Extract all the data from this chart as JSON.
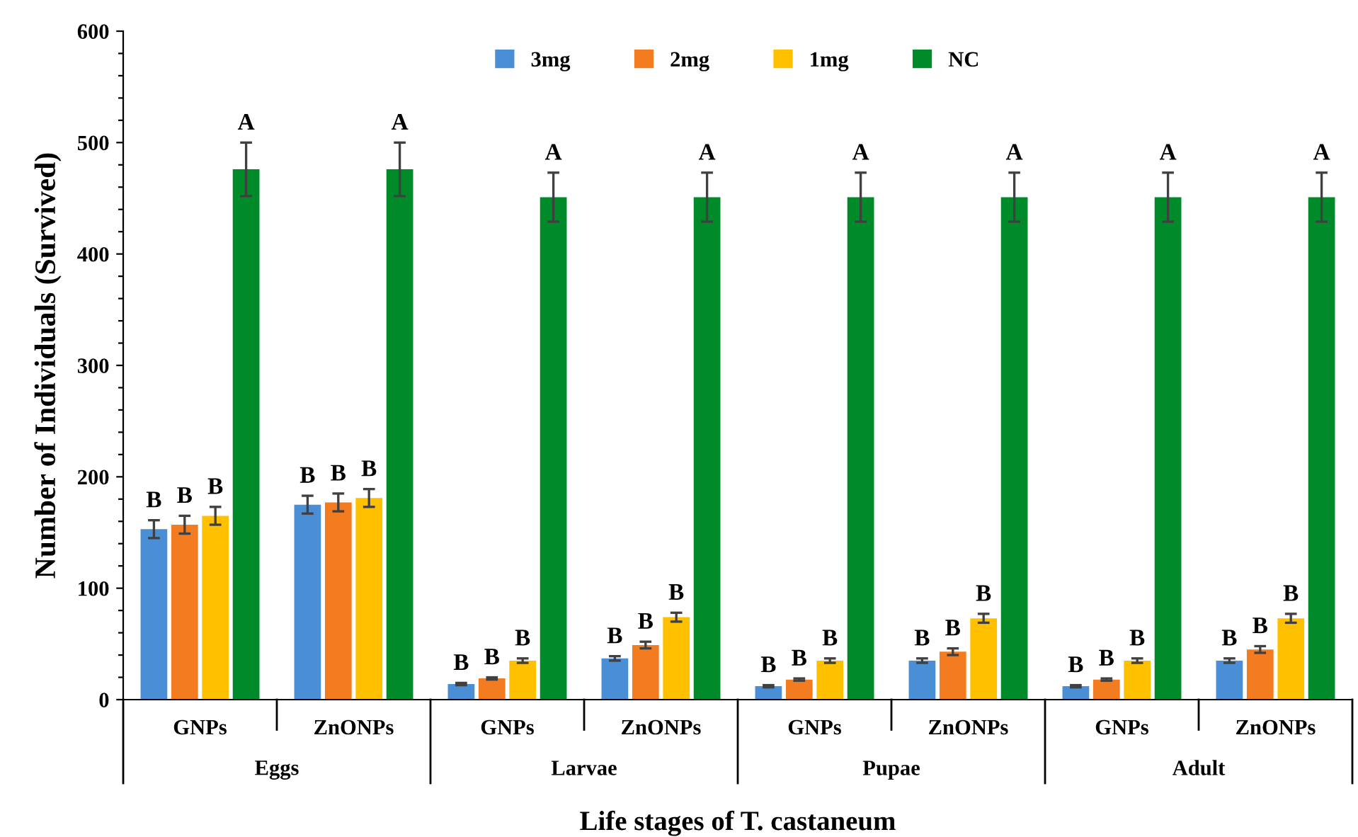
{
  "chart_data": {
    "type": "bar",
    "ylabel": "Number of Individuals (Survived)",
    "xlabel": "Life stages of T. castaneum",
    "categories": [
      "GNPs",
      "ZnONPs",
      "GNPs",
      "ZnONPs",
      "GNPs",
      "ZnONPs",
      "GNPs",
      "ZnONPs"
    ],
    "series": [
      {
        "name": "3mg",
        "color": "#4a8fd6",
        "values": [
          153,
          175,
          14,
          37,
          12,
          35,
          12,
          35
        ],
        "errors": [
          8,
          8,
          1,
          2,
          1,
          2,
          1,
          2
        ],
        "value_labels": [
          "B",
          "B",
          "B",
          "B",
          "B",
          "B",
          "B",
          "B"
        ]
      },
      {
        "name": "2mg",
        "color": "#f47c20",
        "values": [
          157,
          177,
          19,
          49,
          18,
          43,
          18,
          45
        ],
        "errors": [
          8,
          8,
          1,
          3,
          1,
          3,
          1,
          3
        ],
        "value_labels": [
          "B",
          "B",
          "B",
          "B",
          "B",
          "B",
          "B",
          "B"
        ]
      },
      {
        "name": "1mg",
        "color": "#ffc000",
        "values": [
          165,
          181,
          35,
          74,
          35,
          73,
          35,
          73
        ],
        "errors": [
          8,
          8,
          2,
          4,
          2,
          4,
          2,
          4
        ],
        "value_labels": [
          "B",
          "B",
          "B",
          "B",
          "B",
          "B",
          "B",
          "B"
        ]
      },
      {
        "name": "NC",
        "color": "#008a2a",
        "values": [
          476,
          476,
          451,
          451,
          451,
          451,
          451,
          451
        ],
        "errors": [
          24,
          24,
          22,
          22,
          22,
          22,
          22,
          22
        ],
        "value_labels": [
          "A",
          "A",
          "A",
          "A",
          "A",
          "A",
          "A",
          "A"
        ]
      }
    ],
    "annotations": [
      "Eggs",
      "Larvae",
      "Pupae",
      "Adult"
    ],
    "ylim": [
      0,
      600
    ],
    "yticks": [
      0,
      {
        "value": 20,
        "label": null
      },
      {
        "value": 40,
        "label": null
      },
      {
        "value": 60,
        "label": null
      },
      {
        "value": 80,
        "label": null
      },
      100,
      {
        "value": 120,
        "label": null
      },
      {
        "value": 140,
        "label": null
      },
      {
        "value": 160,
        "label": null
      },
      {
        "value": 180,
        "label": null
      },
      200,
      {
        "value": 220,
        "label": null
      },
      {
        "value": 240,
        "label": null
      },
      {
        "value": 260,
        "label": null
      },
      {
        "value": 280,
        "label": null
      },
      300,
      {
        "value": 320,
        "label": null
      },
      {
        "value": 340,
        "label": null
      },
      {
        "value": 360,
        "label": null
      },
      {
        "value": 380,
        "label": null
      },
      400,
      {
        "value": 420,
        "label": null
      },
      {
        "value": 440,
        "label": null
      },
      {
        "value": 460,
        "label": null
      },
      {
        "value": 480,
        "label": null
      },
      500,
      {
        "value": 520,
        "label": null
      },
      {
        "value": 540,
        "label": null
      },
      {
        "value": 560,
        "label": null
      },
      {
        "value": 580,
        "label": null
      },
      600
    ],
    "grid": false,
    "legend": "top"
  }
}
